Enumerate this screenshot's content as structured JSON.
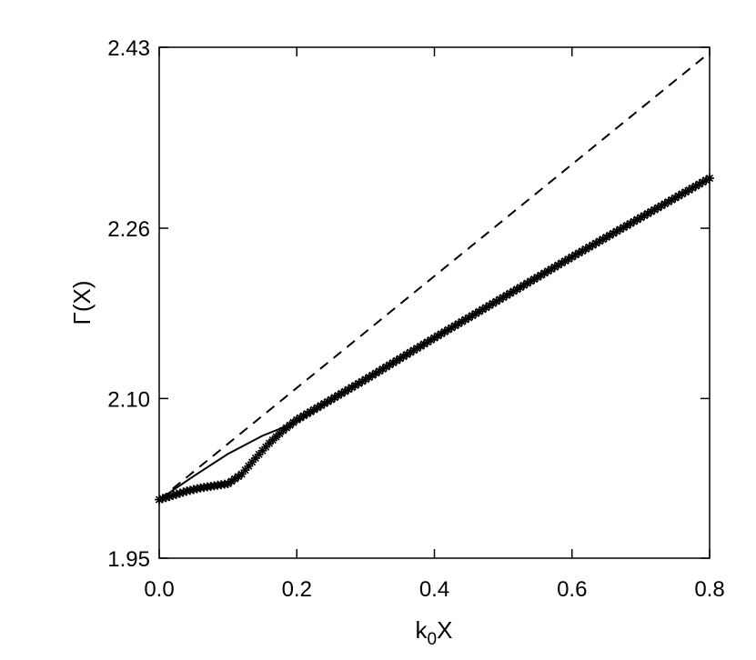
{
  "chart_data": {
    "type": "line",
    "xlabel": "k",
    "xlabel_sub": "0",
    "xlabel_tail": "X",
    "ylabel": "Γ(X)",
    "xlim": [
      0.0,
      0.8
    ],
    "ylim": [
      1.95,
      2.43
    ],
    "x_ticks": [
      {
        "value": 0.0,
        "label": "0.0"
      },
      {
        "value": 0.2,
        "label": "0.2"
      },
      {
        "value": 0.4,
        "label": "0.4"
      },
      {
        "value": 0.6,
        "label": "0.6"
      },
      {
        "value": 0.8,
        "label": "0.8"
      }
    ],
    "y_ticks": [
      {
        "value": 1.95,
        "label": "1.95"
      },
      {
        "value": 2.1,
        "label": "2.10"
      },
      {
        "value": 2.26,
        "label": "2.26"
      },
      {
        "value": 2.43,
        "label": "2.43"
      }
    ],
    "grid": false,
    "series": [
      {
        "style": "dashed",
        "x": [
          0.0,
          0.8
        ],
        "y": [
          2.005,
          2.425
        ]
      },
      {
        "style": "solid",
        "x": [
          0.0,
          0.05,
          0.1,
          0.15,
          0.2,
          0.3,
          0.4,
          0.5,
          0.6,
          0.7,
          0.8
        ],
        "y": [
          2.005,
          2.027,
          2.048,
          2.065,
          2.078,
          2.118,
          2.157,
          2.195,
          2.233,
          2.27,
          2.307
        ]
      },
      {
        "style": "markers",
        "marker": "asterisk",
        "x": [
          0.0,
          0.02,
          0.04,
          0.06,
          0.08,
          0.1,
          0.12,
          0.14,
          0.16,
          0.18,
          0.2,
          0.3,
          0.4,
          0.5,
          0.6,
          0.7,
          0.8
        ],
        "y": [
          2.005,
          2.009,
          2.013,
          2.016,
          2.018,
          2.02,
          2.029,
          2.044,
          2.058,
          2.07,
          2.08,
          2.118,
          2.157,
          2.195,
          2.233,
          2.27,
          2.307
        ]
      }
    ]
  }
}
